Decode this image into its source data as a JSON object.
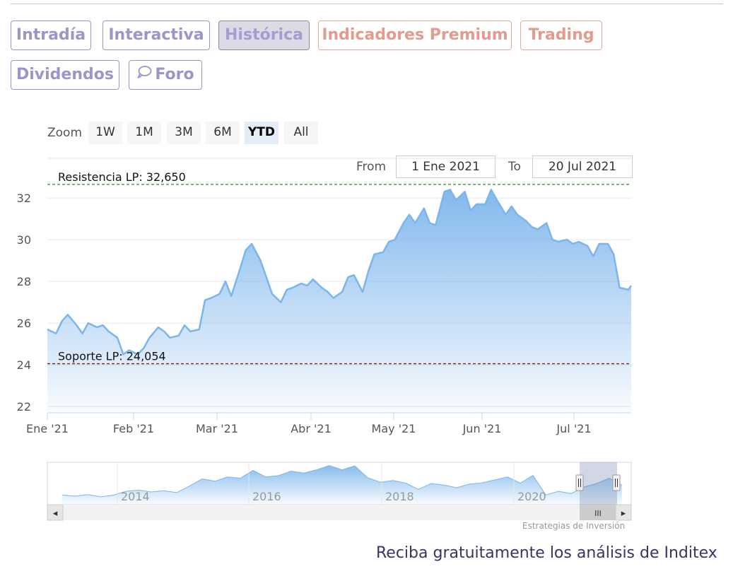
{
  "tabs": [
    {
      "label": "Intradía",
      "state": "normal"
    },
    {
      "label": "Interactiva",
      "state": "normal"
    },
    {
      "label": "Histórica",
      "state": "active"
    },
    {
      "label": "Indicadores Premium",
      "state": "premium"
    },
    {
      "label": "Trading",
      "state": "premium"
    },
    {
      "label": "Dividendos",
      "state": "normal"
    },
    {
      "label": "Foro",
      "state": "normal",
      "icon": "chat-bubble-icon"
    }
  ],
  "zoom": {
    "label": "Zoom",
    "buttons": [
      "1W",
      "1M",
      "3M",
      "6M",
      "YTD",
      "All"
    ],
    "selected": "YTD"
  },
  "range": {
    "from_label": "From",
    "from": "1 Ene 2021",
    "to_label": "To",
    "to": "20 Jul 2021"
  },
  "colors": {
    "line": "#7cb5ec",
    "resistance": "#2a8a2a",
    "support": "#8b1a1a",
    "tab_normal": "#9e94c8",
    "tab_premium": "#e39b8e"
  },
  "chart_data": {
    "type": "area",
    "title": "",
    "xlabel": "",
    "ylabel": "",
    "x_ticks": [
      "Ene '21",
      "Feb '21",
      "Mar '21",
      "Abr '21",
      "May '21",
      "Jun '21",
      "Jul '21"
    ],
    "y_ticks": [
      22,
      24,
      26,
      28,
      30,
      32
    ],
    "ylim": [
      21.7,
      33.9
    ],
    "xlim": [
      "2021-01-01",
      "2021-07-20"
    ],
    "grid": true,
    "series": [
      {
        "name": "",
        "x": [
          "2021-01-01",
          "2021-01-04",
          "2021-01-06",
          "2021-01-08",
          "2021-01-11",
          "2021-01-13",
          "2021-01-15",
          "2021-01-18",
          "2021-01-20",
          "2021-01-22",
          "2021-01-25",
          "2021-01-27",
          "2021-01-29",
          "2021-02-01",
          "2021-02-03",
          "2021-02-05",
          "2021-02-08",
          "2021-02-10",
          "2021-02-12",
          "2021-02-15",
          "2021-02-17",
          "2021-02-19",
          "2021-02-22",
          "2021-02-24",
          "2021-02-26",
          "2021-03-01",
          "2021-03-03",
          "2021-03-05",
          "2021-03-08",
          "2021-03-10",
          "2021-03-12",
          "2021-03-15",
          "2021-03-17",
          "2021-03-19",
          "2021-03-22",
          "2021-03-24",
          "2021-03-26",
          "2021-03-29",
          "2021-03-31",
          "2021-04-02",
          "2021-04-05",
          "2021-04-07",
          "2021-04-09",
          "2021-04-12",
          "2021-04-14",
          "2021-04-16",
          "2021-04-19",
          "2021-04-21",
          "2021-04-23",
          "2021-04-26",
          "2021-04-28",
          "2021-04-30",
          "2021-05-03",
          "2021-05-05",
          "2021-05-07",
          "2021-05-10",
          "2021-05-12",
          "2021-05-14",
          "2021-05-17",
          "2021-05-19",
          "2021-05-21",
          "2021-05-24",
          "2021-05-26",
          "2021-05-28",
          "2021-05-31",
          "2021-06-02",
          "2021-06-04",
          "2021-06-07",
          "2021-06-09",
          "2021-06-11",
          "2021-06-14",
          "2021-06-16",
          "2021-06-18",
          "2021-06-21",
          "2021-06-23",
          "2021-06-25",
          "2021-06-28",
          "2021-06-30",
          "2021-07-02",
          "2021-07-05",
          "2021-07-07",
          "2021-07-09",
          "2021-07-12",
          "2021-07-14",
          "2021-07-16",
          "2021-07-19",
          "2021-07-20"
        ],
        "values": [
          25.7,
          25.5,
          26.1,
          26.4,
          25.9,
          25.5,
          26.0,
          25.8,
          25.9,
          25.6,
          25.3,
          24.5,
          24.7,
          24.5,
          24.8,
          25.3,
          25.8,
          25.6,
          25.3,
          25.4,
          25.9,
          25.6,
          25.7,
          27.1,
          27.2,
          27.4,
          28.0,
          27.3,
          28.6,
          29.5,
          29.8,
          29.0,
          28.2,
          27.4,
          27.0,
          27.6,
          27.7,
          27.9,
          27.8,
          28.1,
          27.7,
          27.5,
          27.2,
          27.5,
          28.2,
          28.3,
          27.5,
          28.5,
          29.3,
          29.4,
          29.9,
          30.0,
          30.8,
          31.2,
          30.8,
          31.5,
          30.8,
          30.7,
          32.3,
          32.4,
          31.9,
          32.3,
          31.4,
          31.7,
          31.7,
          32.4,
          31.9,
          31.2,
          31.6,
          31.2,
          30.9,
          30.6,
          30.5,
          30.8,
          30.0,
          29.9,
          30.0,
          29.8,
          29.9,
          29.7,
          29.2,
          29.8,
          29.8,
          29.3,
          27.7,
          27.6,
          27.8
        ]
      }
    ],
    "annotations": [
      {
        "label": "Resistencia LP: 32,650",
        "value": 32.65,
        "color": "#2a8a2a",
        "style": "dashed"
      },
      {
        "label": "Soporte LP: 24,054",
        "value": 24.054,
        "color": "#8b1a1a",
        "style": "dashed"
      }
    ],
    "navigator": {
      "x_ticks": [
        "2014",
        "2016",
        "2018",
        "2020"
      ],
      "series": [
        {
          "name": "",
          "values": [
            24.5,
            24.1,
            24.6,
            23.9,
            24.4,
            25.6,
            26.0,
            25.4,
            25.8,
            25.2,
            27.2,
            29.4,
            28.7,
            30.0,
            29.6,
            32.0,
            30.0,
            30.4,
            31.8,
            31.2,
            32.2,
            33.5,
            32.2,
            33.4,
            29.8,
            28.4,
            28.9,
            28.1,
            26.2,
            28.0,
            27.5,
            26.7,
            27.8,
            28.2,
            29.1,
            30.0,
            28.1,
            30.5,
            24.5,
            25.6,
            24.9,
            26.9,
            28.0,
            29.6,
            27.5
          ]
        }
      ],
      "selected_range": [
        "2021-01-01",
        "2021-07-20"
      ]
    }
  },
  "scrollbar": {
    "left_arrow": "◂",
    "right_arrow": "▸",
    "grip": "III"
  },
  "credit": "Estrategias de Inversión",
  "cta": "Reciba gratuitamente los análisis de Inditex"
}
